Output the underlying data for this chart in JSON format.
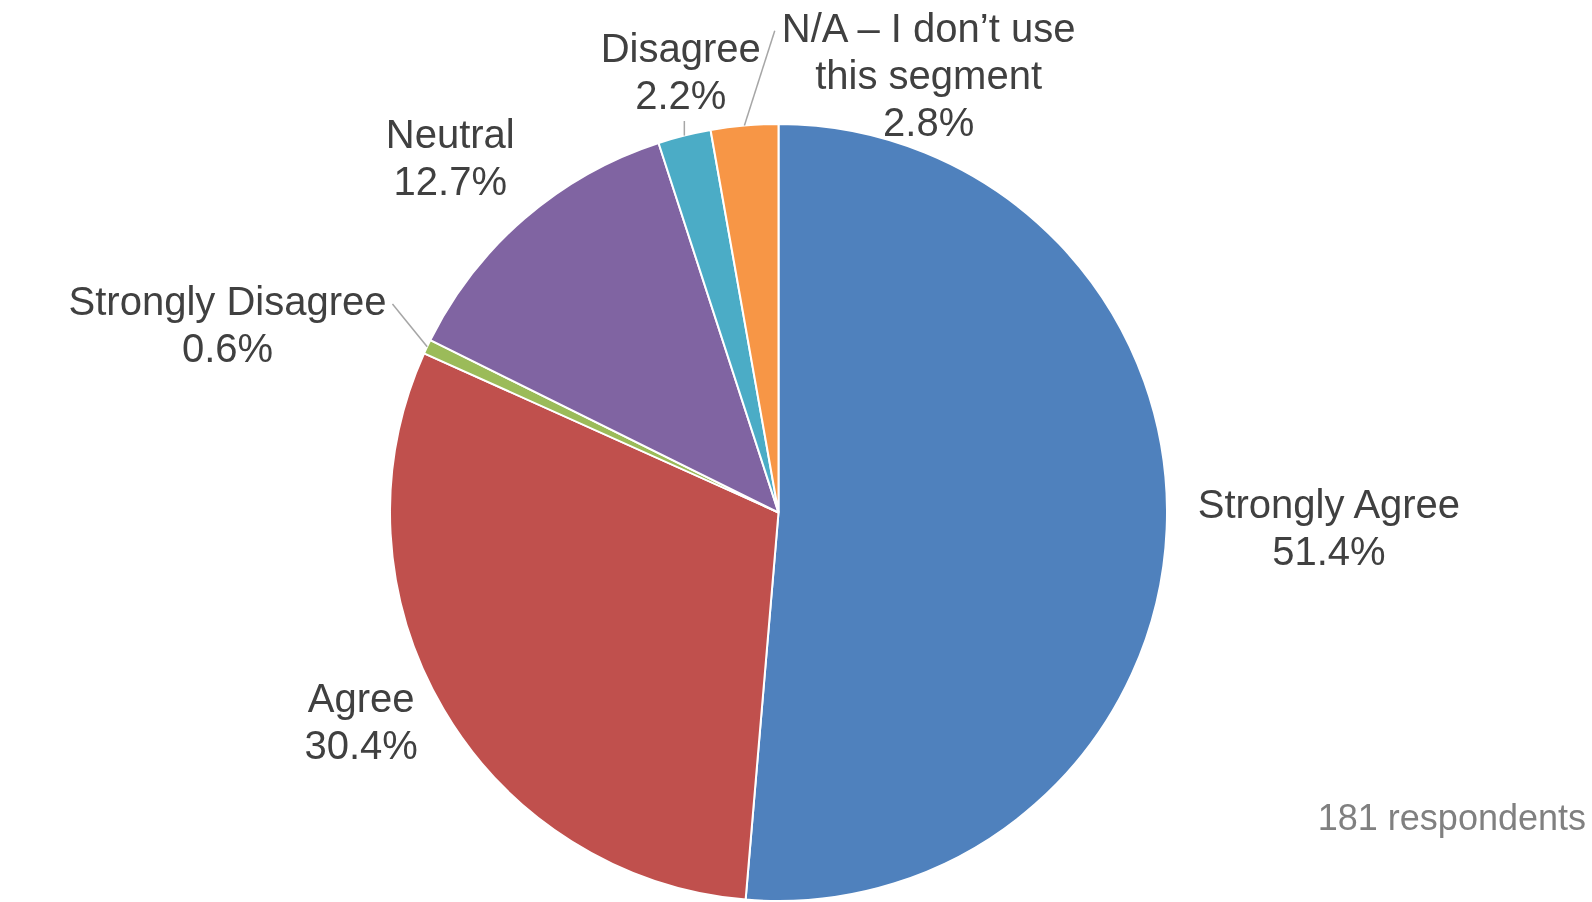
{
  "chart_data": {
    "type": "pie",
    "categories": [
      "Strongly Agree",
      "Agree",
      "Strongly Disagree",
      "Neutral",
      "Disagree",
      "N/A – I don’t use this segment"
    ],
    "values": [
      51.4,
      30.4,
      0.6,
      12.7,
      2.2,
      2.8
    ],
    "value_labels": [
      "51.4%",
      "30.4%",
      "0.6%",
      "12.7%",
      "2.2%",
      "2.8%"
    ],
    "colors": [
      "#4f81bd",
      "#c0504d",
      "#9bbb59",
      "#8064a2",
      "#4bacc6",
      "#f79646"
    ],
    "legend": false,
    "annotations": [
      "181 respondents"
    ]
  }
}
